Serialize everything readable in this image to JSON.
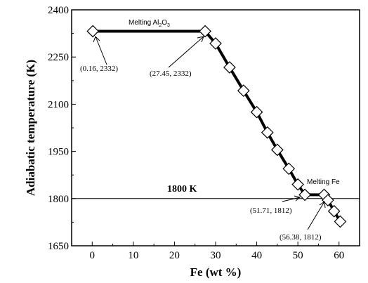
{
  "chart_data": {
    "type": "line",
    "title": "",
    "xlabel": "Fe (wt %)",
    "ylabel": "Adiabatic temperature (K)",
    "xlim": [
      -5,
      65
    ],
    "ylim": [
      1650,
      2400
    ],
    "xticks": [
      0,
      10,
      20,
      30,
      40,
      50,
      60
    ],
    "yticks": [
      1650,
      1800,
      1950,
      2100,
      2250,
      2400
    ],
    "grid": false,
    "legend": "none",
    "reference_line": {
      "y": 1800,
      "label": "1800 K"
    },
    "series": [
      {
        "marker": "diamond",
        "color": "#000000",
        "x": [
          0.16,
          27.45,
          30.0,
          33.4,
          36.8,
          40.0,
          42.6,
          45.0,
          47.8,
          50.0,
          51.71,
          56.38,
          57.3,
          58.8,
          60.3
        ],
        "y": [
          2332,
          2332,
          2293,
          2217,
          2143,
          2075,
          2010,
          1955,
          1895,
          1845,
          1812,
          1812,
          1795,
          1760,
          1727
        ]
      }
    ],
    "annotations": [
      {
        "text": "(0.16, 2332)"
      },
      {
        "text": "(27.45, 2332)"
      },
      {
        "text": "(51.71, 1812)"
      },
      {
        "text": "(56.38, 1812)"
      },
      {
        "text": "Melting Al",
        "sub": "2",
        "after": "O",
        "sub2": "3"
      },
      {
        "text": "Melting Fe"
      }
    ]
  }
}
